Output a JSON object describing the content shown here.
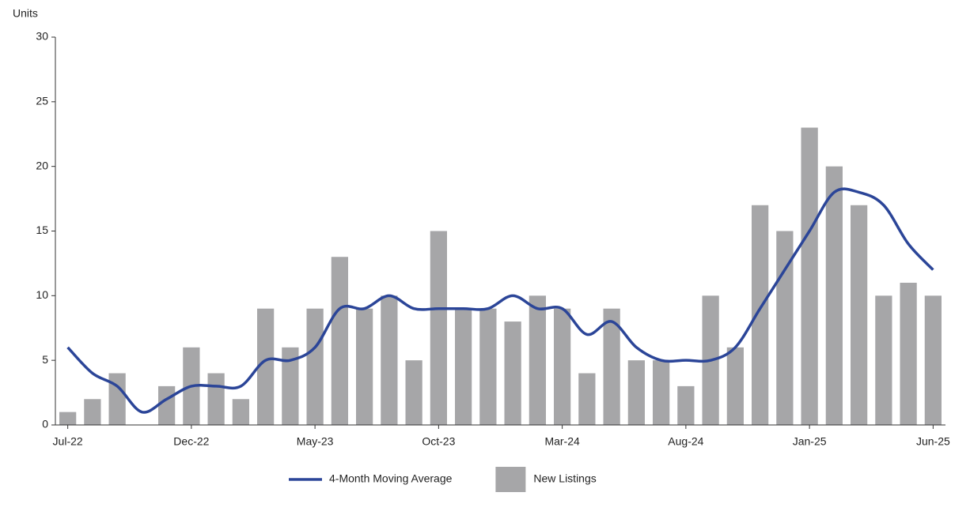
{
  "chart_data": {
    "type": "bar_line",
    "y_label": "Units",
    "categories": [
      "Jul-22",
      null,
      null,
      null,
      null,
      "Dec-22",
      null,
      null,
      null,
      null,
      "May-23",
      null,
      null,
      null,
      null,
      "Oct-23",
      null,
      null,
      null,
      null,
      "Mar-24",
      null,
      null,
      null,
      null,
      "Aug-24",
      null,
      null,
      null,
      null,
      "Jan-25",
      null,
      null,
      null,
      null,
      "Jun-25"
    ],
    "series": [
      {
        "name": "4-Month Moving Average",
        "type": "line",
        "color": "#2b4598",
        "values": [
          6,
          4,
          3,
          1,
          2,
          3,
          3,
          3,
          5,
          5,
          6,
          9,
          9,
          10,
          9,
          9,
          9,
          9,
          10,
          9,
          9,
          7,
          8,
          6,
          5,
          5,
          5,
          6,
          9,
          12,
          15,
          18,
          18,
          17,
          14,
          12
        ]
      },
      {
        "name": "New Listings",
        "type": "bar",
        "color": "#a6a6a8",
        "values": [
          1,
          2,
          4,
          0,
          3,
          6,
          4,
          2,
          9,
          6,
          9,
          13,
          9,
          10,
          5,
          15,
          9,
          9,
          8,
          10,
          9,
          4,
          9,
          5,
          5,
          3,
          10,
          6,
          17,
          15,
          23,
          20,
          17,
          10,
          11,
          10
        ]
      }
    ],
    "ylim": [
      0,
      30
    ],
    "yticks": [
      0,
      5,
      10,
      15,
      20,
      25,
      30
    ],
    "grid": false
  }
}
